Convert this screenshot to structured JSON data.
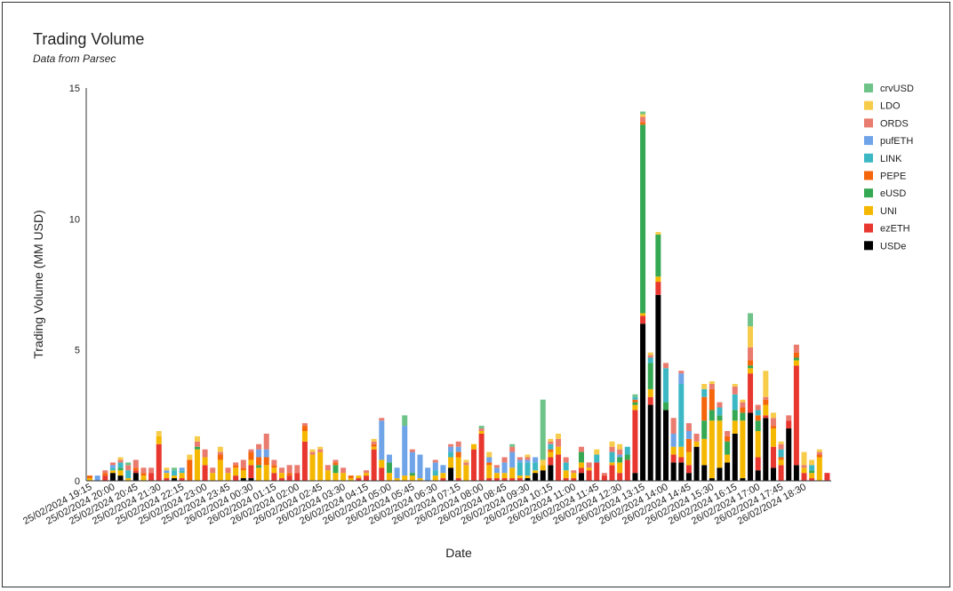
{
  "chart_data": {
    "type": "stacked_bar",
    "title": "Trading Volume",
    "subtitle": "Data from Parsec",
    "x_label": "Date",
    "y_label": "Trading Volume (MM USD)",
    "ylim": [
      0,
      15
    ],
    "yticks": [
      0,
      5,
      10,
      15
    ],
    "grid": false,
    "legend": "right",
    "categories": [
      "25/02/2024 19:15",
      null,
      null,
      "25/02/2024 20:00",
      null,
      null,
      "25/02/2024 20:45",
      null,
      null,
      "25/02/2024 21:30",
      null,
      null,
      "25/02/2024 22:15",
      null,
      null,
      "25/02/2024 23:00",
      null,
      null,
      "25/02/2024 23:45",
      null,
      null,
      "26/02/2024 00:30",
      null,
      null,
      "26/02/2024 01:15",
      null,
      null,
      "26/02/2024 02:00",
      null,
      null,
      "26/02/2024 02:45",
      null,
      null,
      "26/02/2024 03:30",
      null,
      null,
      "26/02/2024 04:15",
      null,
      null,
      "26/02/2024 05:00",
      null,
      null,
      "26/02/2024 05:45",
      null,
      null,
      "26/02/2024 06:30",
      null,
      null,
      "26/02/2024 07:15",
      null,
      null,
      "26/02/2024 08:00",
      null,
      null,
      "26/02/2024 08:45",
      null,
      null,
      "26/02/2024 09:30",
      null,
      null,
      "26/02/2024 10:15",
      null,
      null,
      "26/02/2024 11:00",
      null,
      null,
      "26/02/2024 11:45",
      null,
      null,
      "26/02/2024 12:30",
      null,
      null,
      "26/02/2024 13:15",
      null,
      null,
      "26/02/2024 14:00",
      null,
      null,
      "26/02/2024 14:45",
      null,
      null,
      "26/02/2024 15:30",
      null,
      null,
      "26/02/2024 16:15",
      null,
      null,
      "26/02/2024 17:00",
      null,
      null,
      "26/02/2024 17:45",
      null,
      null,
      "26/02/2024 18:30",
      null,
      null,
      null
    ],
    "series": [
      {
        "name": "USDe",
        "color": "#000000",
        "values": [
          0,
          0,
          0,
          0.3,
          0.2,
          0,
          0.3,
          0,
          0,
          0,
          0,
          0.1,
          0,
          0,
          0,
          0,
          0,
          0,
          0,
          0,
          0.1,
          0.1,
          0,
          0,
          0,
          0,
          0,
          0,
          0,
          0,
          0,
          0,
          0,
          0,
          0,
          0,
          0,
          0,
          0,
          0,
          0,
          0,
          0,
          0,
          0,
          0,
          0,
          0.5,
          0,
          0,
          0,
          0,
          0,
          0,
          0,
          0,
          0,
          0.1,
          0.3,
          0.4,
          0.6,
          0,
          0,
          0,
          0.3,
          0,
          0,
          0,
          0,
          0,
          0,
          0.3,
          6.0,
          2.9,
          7.1,
          2.7,
          0.7,
          0.7,
          0.3,
          1.3,
          0.6,
          0.1,
          0.5,
          0.7,
          1.8,
          0.1,
          2.6,
          0.4,
          2.4,
          0.5,
          0,
          2.0,
          0.6,
          0,
          0,
          0,
          0
        ]
      },
      {
        "name": "ezETH",
        "color": "#e8372f",
        "values": [
          0,
          0,
          0.2,
          0,
          0,
          0,
          0.1,
          0,
          0.3,
          1.4,
          0.1,
          0,
          0.1,
          0,
          0,
          0.6,
          0,
          0,
          0,
          0.2,
          0,
          0.5,
          0,
          0,
          0.3,
          0.1,
          0.2,
          0.3,
          1.5,
          0,
          0,
          0,
          0,
          0,
          0,
          0.1,
          0.2,
          1.2,
          0.5,
          0,
          0,
          0,
          0,
          0,
          0,
          0,
          0.1,
          0,
          0.1,
          0,
          1.2,
          1.8,
          0.1,
          0.1,
          0.1,
          0.1,
          0.1,
          0,
          0,
          0,
          0.3,
          1.0,
          0.1,
          0.1,
          0.2,
          0.4,
          0.7,
          0.2,
          0.6,
          0.3,
          0.8,
          2.4,
          0.3,
          0.3,
          0.5,
          0,
          0.3,
          0.2,
          0.3,
          0,
          0,
          0,
          0,
          0,
          0,
          0,
          1.5,
          0.5,
          0.1,
          0.8,
          0.6,
          0.3,
          3.8,
          0.3,
          0.1,
          0,
          0.3
        ]
      },
      {
        "name": "UNI",
        "color": "#f5b800",
        "values": [
          0.1,
          0,
          0,
          0.1,
          0.2,
          0.1,
          0,
          0.2,
          0,
          0.3,
          0.2,
          0.1,
          0.2,
          0,
          1.2,
          0.3,
          0.3,
          0.8,
          0.3,
          0.3,
          0.3,
          0.2,
          0.5,
          0.6,
          0.2,
          0.2,
          0,
          0,
          0.4,
          1.0,
          1.1,
          0.4,
          0.3,
          0.3,
          0.1,
          0.1,
          0.1,
          0.1,
          0.3,
          0.3,
          0.1,
          0.2,
          0.2,
          0.1,
          0,
          0.2,
          0.2,
          0.4,
          0.8,
          0.6,
          0.2,
          0.1,
          0.5,
          0.2,
          0.2,
          0.4,
          0.1,
          0.1,
          0.1,
          0.2,
          0.2,
          0.3,
          0.3,
          0.2,
          0.2,
          0.1,
          0,
          0,
          0.1,
          0.4,
          0,
          0.2,
          0.1,
          0.3,
          0.2,
          0,
          0.3,
          0.4,
          0.5,
          0.2,
          1.0,
          2.2,
          1.8,
          0.3,
          0.5,
          2.2,
          0.2,
          1.0,
          0.4,
          0.7,
          0.2,
          0,
          0.2,
          0.2,
          0.2,
          0.9,
          0
        ]
      },
      {
        "name": "eUSD",
        "color": "#34a853",
        "values": [
          0,
          0,
          0,
          0,
          0.1,
          0,
          0,
          0,
          0,
          0,
          0,
          0,
          0,
          0,
          0.1,
          0,
          0,
          0,
          0,
          0,
          0,
          0,
          0.1,
          0,
          0,
          0,
          0,
          0,
          0,
          0,
          0,
          0,
          0.3,
          0,
          0,
          0,
          0,
          0,
          0,
          0.4,
          0,
          0,
          0.1,
          0,
          0,
          0,
          0,
          0,
          0,
          0,
          0,
          0,
          0,
          0,
          0,
          0,
          0,
          0,
          0,
          0,
          0,
          0,
          0,
          0,
          0.4,
          0,
          0,
          0,
          0,
          0.2,
          0.2,
          0.1,
          7.2,
          1.0,
          1.6,
          0.3,
          0,
          0,
          0,
          0,
          0.7,
          0.4,
          0.2,
          0.5,
          0.4,
          0.3,
          0.1,
          0.4,
          0,
          0,
          0,
          0,
          0.1,
          0,
          0.1,
          0,
          0
        ]
      },
      {
        "name": "PEPE",
        "color": "#f4650c",
        "values": [
          0.1,
          0,
          0.1,
          0,
          0,
          0,
          0.1,
          0.1,
          0,
          0,
          0,
          0,
          0,
          0.8,
          0,
          0,
          0,
          0.2,
          0,
          0.1,
          0.1,
          0.3,
          0.3,
          0.3,
          0.1,
          0,
          0.1,
          0,
          0.2,
          0,
          0,
          0,
          0.1,
          0,
          0.1,
          0,
          0,
          0.1,
          0,
          0,
          0,
          0,
          0,
          0,
          0,
          0,
          0,
          0,
          0.2,
          0,
          0,
          0,
          0.1,
          0,
          0,
          0,
          0,
          0,
          0,
          0,
          0.1,
          0,
          0,
          0,
          0,
          0,
          0,
          0,
          0,
          0,
          0,
          0.1,
          0.1,
          0,
          0,
          0,
          0,
          0,
          0.5,
          0,
          0.9,
          0.8,
          0,
          0.2,
          0,
          0.2,
          0.2,
          0.2,
          0.2,
          0.1,
          0.1,
          0,
          0.2,
          0,
          0,
          0.1,
          0
        ]
      },
      {
        "name": "LINK",
        "color": "#3cb8c4",
        "values": [
          0,
          0,
          0,
          0.1,
          0.2,
          0.3,
          0,
          0,
          0,
          0,
          0,
          0.2,
          0.1,
          0,
          0,
          0,
          0,
          0,
          0,
          0,
          0,
          0,
          0,
          0,
          0,
          0,
          0,
          0,
          0,
          0,
          0,
          0,
          0,
          0,
          0,
          0,
          0,
          0,
          0,
          0,
          0,
          0,
          0,
          0,
          0,
          0.2,
          0,
          0.2,
          0,
          0,
          0,
          0,
          0,
          0,
          0,
          0,
          0.5,
          0.5,
          0.3,
          0,
          0.2,
          0,
          0.3,
          0,
          0,
          0,
          0.3,
          0,
          0.4,
          0,
          0.3,
          0.1,
          0,
          0.2,
          0,
          1.3,
          0,
          2.4,
          0,
          0,
          0.3,
          0,
          0.3,
          0,
          0.6,
          0,
          0,
          0.2,
          0,
          0,
          0.3,
          0,
          0,
          0,
          0.2,
          0,
          0
        ]
      },
      {
        "name": "pufETH",
        "color": "#6fa4e8",
        "values": [
          0,
          0.2,
          0,
          0.1,
          0,
          0,
          0,
          0,
          0,
          0,
          0.1,
          0,
          0.1,
          0,
          0,
          0,
          0,
          0,
          0,
          0,
          0,
          0,
          0.3,
          0.3,
          0,
          0,
          0,
          0,
          0,
          0,
          0,
          0,
          0,
          0,
          0,
          0,
          0,
          0,
          1.5,
          0.3,
          0.4,
          1.9,
          0.8,
          0.9,
          0.5,
          0.3,
          0.3,
          0.2,
          0.2,
          0,
          0,
          0,
          0.2,
          0.2,
          0.4,
          0.6,
          0.1,
          0.1,
          0.2,
          0,
          0,
          0,
          0,
          0,
          0,
          0,
          0,
          0,
          0,
          0.1,
          0,
          0,
          0,
          0,
          0,
          0,
          0.5,
          0.4,
          0.3,
          0,
          0,
          0,
          0,
          0,
          0,
          0,
          0,
          0,
          0,
          0,
          0,
          0,
          0,
          0,
          0,
          0,
          0
        ]
      },
      {
        "name": "ORDS",
        "color": "#ea7b6f",
        "values": [
          0,
          0,
          0.1,
          0.1,
          0.1,
          0.2,
          0.3,
          0.2,
          0.2,
          0,
          0,
          0,
          0,
          0,
          0.2,
          0.3,
          0.2,
          0.1,
          0.2,
          0.1,
          0.3,
          0.1,
          0.2,
          0.6,
          0.2,
          0.2,
          0.3,
          0.3,
          0.1,
          0.1,
          0.1,
          0.2,
          0.1,
          0.2,
          0,
          0,
          0.1,
          0.1,
          0.1,
          0,
          0,
          0,
          0.1,
          0,
          0,
          0.1,
          0,
          0.1,
          0.2,
          0.1,
          0,
          0.1,
          0,
          0.1,
          0.2,
          0.2,
          0.1,
          0.1,
          0,
          0,
          0.1,
          0.3,
          0.2,
          0.1,
          0.2,
          0.2,
          0,
          0.1,
          0.2,
          0.2,
          0,
          0,
          0.2,
          0.1,
          0,
          0.2,
          0.6,
          0.1,
          0.3,
          0.3,
          0,
          0.2,
          0.2,
          0.2,
          0.3,
          0.2,
          0.5,
          0.2,
          0.1,
          0.3,
          0.2,
          0.2,
          0.3,
          0.1,
          0,
          0.1,
          0
        ]
      },
      {
        "name": "LDO",
        "color": "#f7cc4a",
        "values": [
          0,
          0,
          0,
          0,
          0.1,
          0,
          0,
          0,
          0,
          0.2,
          0.1,
          0,
          0,
          0.2,
          0.2,
          0,
          0,
          0.2,
          0,
          0,
          0,
          0,
          0,
          0,
          0,
          0,
          0,
          0,
          0,
          0.1,
          0.1,
          0,
          0,
          0,
          0,
          0,
          0,
          0.1,
          0,
          0,
          0,
          0,
          0,
          0,
          0,
          0,
          0,
          0,
          0,
          0.1,
          0,
          0,
          0.2,
          0,
          0,
          0,
          0,
          0.1,
          0,
          0.2,
          0.1,
          0.2,
          0,
          0,
          0,
          0,
          0.2,
          0,
          0.2,
          0.2,
          0,
          0,
          0.1,
          0.1,
          0.1,
          0,
          0,
          0,
          0,
          0,
          0.2,
          0.1,
          0,
          0,
          0.1,
          0.1,
          0.8,
          0,
          1.0,
          0.2,
          0.1,
          0,
          0,
          0.5,
          0.2,
          0.1,
          0
        ]
      },
      {
        "name": "crvUSD",
        "color": "#6dc388",
        "values": [
          0,
          0,
          0,
          0,
          0,
          0.1,
          0,
          0,
          0,
          0,
          0,
          0.1,
          0,
          0,
          0,
          0,
          0,
          0,
          0,
          0,
          0,
          0,
          0,
          0,
          0,
          0,
          0,
          0,
          0,
          0,
          0,
          0,
          0,
          0,
          0,
          0,
          0,
          0,
          0,
          0,
          0,
          0.4,
          0,
          0,
          0,
          0,
          0,
          0,
          0,
          0,
          0,
          0.1,
          0,
          0,
          0,
          0.1,
          0,
          0,
          0,
          2.3,
          0,
          0,
          0,
          0,
          0,
          0,
          0,
          0,
          0,
          0,
          0,
          0.1,
          0.1,
          0,
          0,
          0,
          0,
          0,
          0,
          0,
          0,
          0,
          0,
          0,
          0,
          0,
          0.5,
          0,
          0,
          0,
          0,
          0,
          0,
          0,
          0,
          0,
          0
        ]
      }
    ]
  }
}
